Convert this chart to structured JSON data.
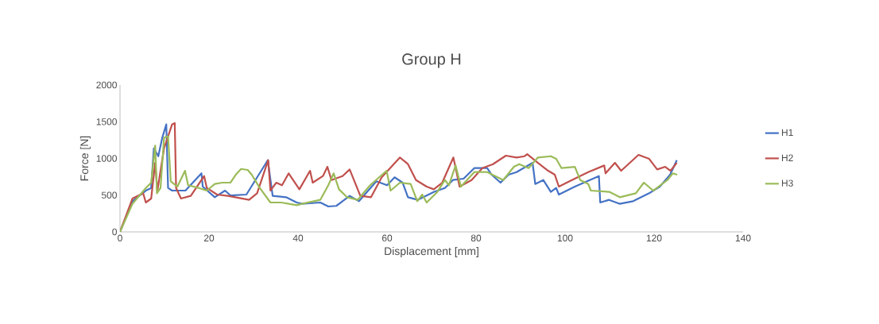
{
  "chart_data": {
    "type": "line",
    "title": "Group H",
    "xlabel": "Displacement [mm]",
    "ylabel": "Force [N]",
    "xlim": [
      0,
      140
    ],
    "xticks": [
      0,
      20,
      40,
      60,
      80,
      100,
      120,
      140
    ],
    "ylim": [
      0,
      2000
    ],
    "yticks": [
      0,
      500,
      1000,
      1500,
      2000
    ],
    "legend": "right",
    "marker": "none",
    "line_style": "solid",
    "series": [
      {
        "name": "H1",
        "color": "#4472c4",
        "x": [
          0,
          2.8,
          5.8,
          7,
          7.6,
          8.6,
          9.5,
          10.4,
          10.8,
          11.7,
          14.7,
          18.3,
          18.6,
          21.3,
          23.6,
          24.8,
          28.4,
          33.2,
          34.3,
          37.3,
          39.7,
          40.9,
          45,
          46.8,
          48.6,
          51.6,
          53.7,
          57.6,
          60,
          61.7,
          63.5,
          64.7,
          66.9,
          70.5,
          73,
          74.8,
          77.2,
          79.6,
          82.5,
          83.5,
          85.5,
          87.3,
          89.1,
          92.7,
          93.3,
          95.1,
          96.8,
          98,
          98.6,
          102.2,
          107.6,
          107.9,
          109.9,
          112.3,
          115.3,
          118.9,
          121.3,
          123.6,
          125.1
        ],
        "values": [
          0,
          418,
          562,
          598,
          1138,
          1030,
          1283,
          1463,
          598,
          562,
          562,
          797,
          616,
          472,
          562,
          497,
          508,
          976,
          490,
          472,
          400,
          382,
          400,
          346,
          354,
          490,
          418,
          689,
          635,
          743,
          670,
          472,
          436,
          544,
          598,
          706,
          724,
          868,
          868,
          778,
          670,
          778,
          814,
          940,
          652,
          706,
          544,
          598,
          508,
          616,
          760,
          400,
          436,
          382,
          418,
          526,
          616,
          778,
          976
        ]
      },
      {
        "name": "H2",
        "color": "#c0504d",
        "x": [
          0,
          2.8,
          5.2,
          5.8,
          7,
          7.9,
          8.4,
          9.9,
          11.7,
          12.3,
          12.6,
          13.7,
          15.9,
          18.9,
          19.5,
          21.8,
          24.2,
          29,
          30.8,
          33.3,
          33.8,
          35.1,
          36.4,
          37.9,
          40.3,
          42.7,
          43.3,
          45.6,
          46.6,
          47.5,
          50,
          51.6,
          54,
          56.4,
          58.8,
          62.9,
          64.7,
          66.5,
          68.9,
          70.5,
          72.4,
          74.9,
          76.3,
          79,
          81.4,
          83.8,
          86.7,
          89.1,
          90.9,
          91.5,
          93.9,
          96.2,
          97.7,
          98.6,
          101,
          105.2,
          108.8,
          109.1,
          111.2,
          112.6,
          116.5,
          118.9,
          120.7,
          122.5,
          123.7,
          125.1
        ],
        "values": [
          0,
          454,
          526,
          400,
          454,
          940,
          562,
          1138,
          1463,
          1481,
          598,
          454,
          490,
          760,
          598,
          508,
          490,
          436,
          526,
          976,
          562,
          670,
          635,
          797,
          580,
          832,
          670,
          760,
          886,
          706,
          760,
          850,
          490,
          472,
          743,
          1013,
          922,
          706,
          616,
          580,
          670,
          1013,
          616,
          706,
          868,
          922,
          1038,
          1013,
          1030,
          1059,
          940,
          832,
          778,
          616,
          689,
          814,
          904,
          797,
          940,
          832,
          1049,
          994,
          850,
          886,
          832,
          940
        ]
      },
      {
        "name": "H3",
        "color": "#9bbb59",
        "x": [
          0,
          2.8,
          5.8,
          7,
          7.9,
          8.3,
          9.1,
          9.9,
          10.8,
          11.4,
          12.9,
          14.6,
          15.3,
          17.7,
          19.5,
          21.3,
          23,
          24.8,
          26,
          27.2,
          28.7,
          29.6,
          31.4,
          33.8,
          36.2,
          39.7,
          40.9,
          45,
          46.8,
          48,
          49.2,
          51,
          53.4,
          56.2,
          59.9,
          60.8,
          62.9,
          65.3,
          66.8,
          67.9,
          68.9,
          71.3,
          73,
          73.9,
          75.4,
          76.6,
          79.6,
          82.5,
          86.1,
          88.5,
          89.7,
          91.8,
          93.9,
          96.8,
          98,
          99.2,
          102.2,
          103.4,
          105.2,
          105.8,
          110,
          112.3,
          115.9,
          117.7,
          119.8,
          123,
          124.2,
          125.2
        ],
        "values": [
          0,
          382,
          598,
          670,
          1175,
          526,
          598,
          1283,
          1301,
          689,
          616,
          832,
          635,
          598,
          562,
          652,
          670,
          670,
          778,
          857,
          843,
          778,
          598,
          400,
          400,
          364,
          382,
          436,
          635,
          797,
          580,
          472,
          436,
          635,
          832,
          562,
          670,
          652,
          418,
          508,
          400,
          544,
          706,
          635,
          904,
          616,
          814,
          814,
          706,
          886,
          922,
          868,
          1013,
          1030,
          994,
          868,
          886,
          706,
          652,
          562,
          544,
          472,
          526,
          670,
          562,
          706,
          797,
          778
        ]
      }
    ]
  }
}
